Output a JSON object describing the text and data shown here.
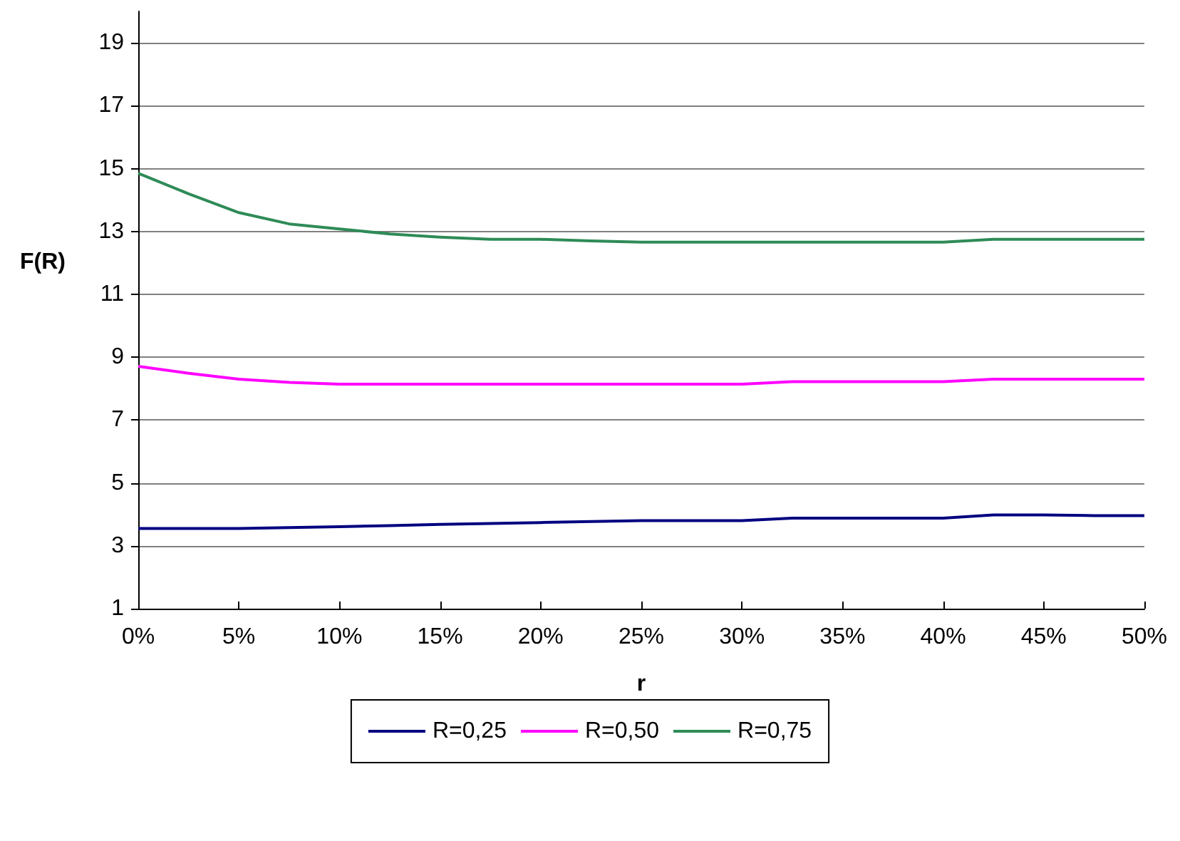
{
  "chart_data": {
    "type": "line",
    "xlabel": "r",
    "ylabel": "F(R)",
    "x": [
      0,
      2.5,
      5,
      7.5,
      10,
      12.5,
      15,
      17.5,
      20,
      22.5,
      25,
      27.5,
      30,
      32.5,
      35,
      37.5,
      40,
      42.5,
      45,
      47.5,
      50
    ],
    "series": [
      {
        "name": "R=0,25",
        "color": "#000080",
        "values": [
          3.55,
          3.55,
          3.55,
          3.58,
          3.61,
          3.64,
          3.68,
          3.71,
          3.74,
          3.77,
          3.8,
          3.8,
          3.8,
          3.88,
          3.88,
          3.88,
          3.88,
          3.98,
          3.98,
          3.96,
          3.96
        ]
      },
      {
        "name": "R=0,50",
        "color": "#ff00ff",
        "values": [
          8.71,
          8.49,
          8.3,
          8.2,
          8.14,
          8.14,
          8.14,
          8.14,
          8.14,
          8.14,
          8.14,
          8.14,
          8.14,
          8.22,
          8.22,
          8.22,
          8.22,
          8.3,
          8.3,
          8.3,
          8.3
        ]
      },
      {
        "name": "R=0,75",
        "color": "#2e8b57",
        "values": [
          14.85,
          14.2,
          13.6,
          13.24,
          13.08,
          12.92,
          12.82,
          12.75,
          12.75,
          12.7,
          12.66,
          12.66,
          12.66,
          12.66,
          12.66,
          12.66,
          12.66,
          12.75,
          12.75,
          12.75,
          12.75
        ]
      }
    ],
    "xlim": [
      0,
      50
    ],
    "xticks": [
      {
        "value": 0,
        "label": "0%"
      },
      {
        "value": 5,
        "label": "5%"
      },
      {
        "value": 10,
        "label": "10%"
      },
      {
        "value": 15,
        "label": "15%"
      },
      {
        "value": 20,
        "label": "20%"
      },
      {
        "value": 25,
        "label": "25%"
      },
      {
        "value": 30,
        "label": "30%"
      },
      {
        "value": 35,
        "label": "35%"
      },
      {
        "value": 40,
        "label": "40%"
      },
      {
        "value": 45,
        "label": "45%"
      },
      {
        "value": 50,
        "label": "50%"
      }
    ],
    "ylim": [
      1,
      20
    ],
    "yticks": [
      1,
      3,
      5,
      7,
      9,
      11,
      13,
      15,
      17,
      19
    ],
    "grid": "y",
    "legend": "bottom",
    "marker": "none",
    "line_style": "solid"
  }
}
